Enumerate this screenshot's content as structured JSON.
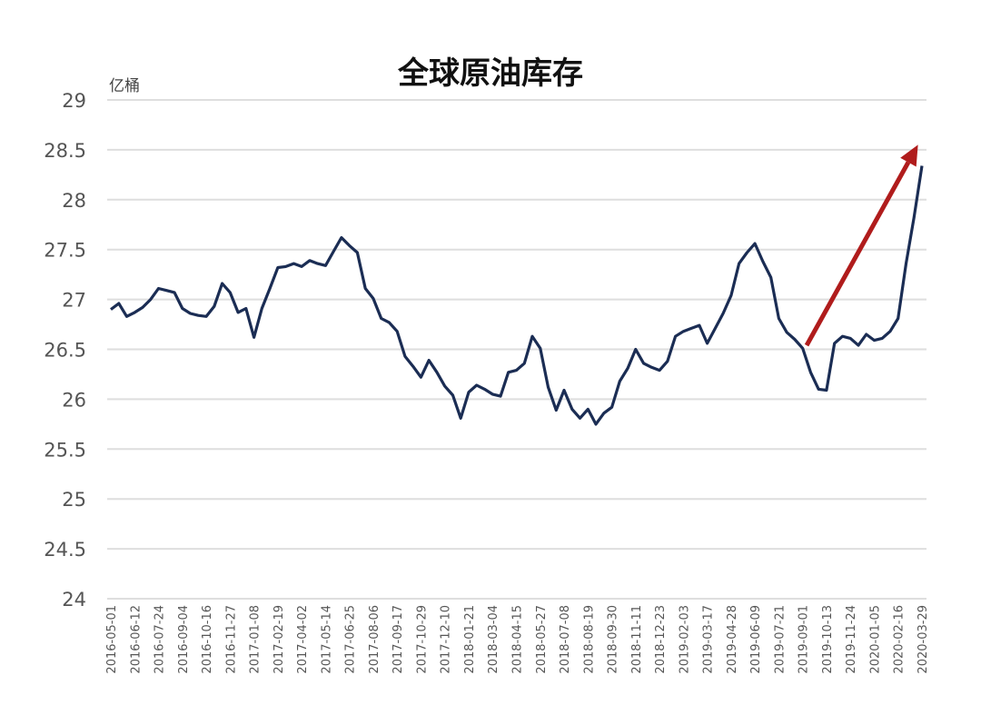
{
  "chart_data": {
    "type": "line",
    "title": "全球原油库存",
    "ylabel": "亿桶",
    "xlabel": "",
    "ylim": [
      24,
      29
    ],
    "yticks": [
      "29",
      "28.5",
      "28",
      "27.5",
      "27",
      "26.5",
      "26",
      "25.5",
      "25",
      "24.5",
      "24"
    ],
    "xlim": [
      "2016-05-01",
      "2020-03-29"
    ],
    "xticks": [
      "2016-05-01",
      "2016-06-12",
      "2016-07-24",
      "2016-09-04",
      "2016-10-16",
      "2016-11-27",
      "2017-01-08",
      "2017-02-19",
      "2017-04-02",
      "2017-05-14",
      "2017-06-25",
      "2017-08-06",
      "2017-09-17",
      "2017-10-29",
      "2017-12-10",
      "2018-01-21",
      "2018-03-04",
      "2018-04-15",
      "2018-05-27",
      "2018-07-08",
      "2018-08-19",
      "2018-09-30",
      "2018-11-11",
      "2018-12-23",
      "2019-02-03",
      "2019-03-17",
      "2019-04-28",
      "2019-06-09",
      "2019-07-21",
      "2019-09-01",
      "2019-10-13",
      "2019-11-24",
      "2020-01-05",
      "2020-02-16",
      "2020-03-29"
    ],
    "grid": "horizontal",
    "legend": "none",
    "line_color": "#1b2d54",
    "x": [
      "2016-05-01",
      "2016-05-15",
      "2016-05-29",
      "2016-06-12",
      "2016-06-26",
      "2016-07-10",
      "2016-07-24",
      "2016-08-07",
      "2016-08-21",
      "2016-09-04",
      "2016-09-18",
      "2016-10-02",
      "2016-10-16",
      "2016-10-30",
      "2016-11-13",
      "2016-11-27",
      "2016-12-11",
      "2016-12-25",
      "2017-01-08",
      "2017-01-22",
      "2017-02-05",
      "2017-02-19",
      "2017-03-05",
      "2017-03-19",
      "2017-04-02",
      "2017-04-16",
      "2017-04-30",
      "2017-05-14",
      "2017-05-28",
      "2017-06-11",
      "2017-06-25",
      "2017-07-09",
      "2017-07-23",
      "2017-08-06",
      "2017-08-20",
      "2017-09-03",
      "2017-09-17",
      "2017-10-01",
      "2017-10-15",
      "2017-10-29",
      "2017-11-12",
      "2017-11-26",
      "2017-12-10",
      "2017-12-24",
      "2018-01-07",
      "2018-01-21",
      "2018-02-04",
      "2018-02-18",
      "2018-03-04",
      "2018-03-18",
      "2018-04-01",
      "2018-04-15",
      "2018-04-29",
      "2018-05-13",
      "2018-05-27",
      "2018-06-10",
      "2018-06-24",
      "2018-07-08",
      "2018-07-22",
      "2018-08-05",
      "2018-08-19",
      "2018-09-02",
      "2018-09-16",
      "2018-09-30",
      "2018-10-14",
      "2018-10-28",
      "2018-11-11",
      "2018-11-25",
      "2018-12-09",
      "2018-12-23",
      "2019-01-06",
      "2019-01-20",
      "2019-02-03",
      "2019-02-17",
      "2019-03-03",
      "2019-03-17",
      "2019-03-31",
      "2019-04-14",
      "2019-04-28",
      "2019-05-12",
      "2019-05-26",
      "2019-06-09",
      "2019-06-23",
      "2019-07-07",
      "2019-07-21",
      "2019-08-04",
      "2019-08-18",
      "2019-09-01",
      "2019-09-15",
      "2019-09-29",
      "2019-10-13",
      "2019-10-27",
      "2019-11-10",
      "2019-11-24",
      "2019-12-08",
      "2019-12-22",
      "2020-01-05",
      "2020-01-19",
      "2020-02-02",
      "2020-02-16",
      "2020-03-01",
      "2020-03-15",
      "2020-03-29"
    ],
    "series": [
      {
        "values": [
          26.9,
          26.96,
          26.83,
          26.87,
          26.92,
          27.0,
          27.11,
          27.09,
          27.07,
          26.91,
          26.86,
          26.84,
          26.83,
          26.93,
          27.16,
          27.07,
          26.87,
          26.91,
          26.62,
          26.91,
          27.11,
          27.32,
          27.33,
          27.36,
          27.33,
          27.39,
          27.36,
          27.34,
          27.48,
          27.62,
          27.54,
          27.47,
          27.11,
          27.01,
          26.81,
          26.77,
          26.68,
          26.43,
          26.33,
          26.22,
          26.39,
          26.27,
          26.13,
          26.04,
          25.81,
          26.07,
          26.14,
          26.1,
          26.05,
          26.03,
          26.27,
          26.29,
          26.36,
          26.63,
          26.51,
          26.12,
          25.89,
          26.09,
          25.9,
          25.81,
          25.9,
          25.75,
          25.86,
          25.92,
          26.18,
          26.31,
          26.5,
          26.36,
          26.32,
          26.29,
          26.38,
          26.63,
          26.68,
          26.71,
          26.74,
          26.56,
          26.71,
          26.86,
          27.04,
          27.36,
          27.47,
          27.56,
          27.38,
          27.22,
          26.81,
          26.67,
          26.6,
          26.51,
          26.27,
          26.1,
          26.09,
          26.56,
          26.63,
          26.61,
          26.54,
          26.65,
          26.59,
          26.61,
          26.68,
          26.81,
          27.36,
          27.82,
          28.34
        ]
      }
    ],
    "annotations": [
      {
        "type": "arrow",
        "color": "#b01c1c",
        "from": {
          "x": "2019-09-08",
          "y": 26.54
        },
        "to": {
          "x": "2020-03-22",
          "y": 28.55
        }
      }
    ]
  }
}
